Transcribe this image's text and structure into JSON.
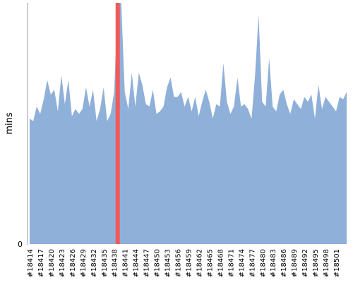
{
  "chart_data": {
    "type": "area",
    "ylabel": "mins",
    "xlabel": "",
    "ylim": [
      0,
      100
    ],
    "grid": false,
    "y_ticks": [
      {
        "value": 0,
        "label": "0"
      }
    ],
    "colors": {
      "area": "#8fb0d9",
      "highlight": "#f05a5a",
      "axis": "#999999",
      "text": "#000000"
    },
    "x_tick_labels": [
      "#18414",
      "#18417",
      "#18420",
      "#18423",
      "#18426",
      "#18429",
      "#18432",
      "#18435",
      "#18438",
      "#18441",
      "#18444",
      "#18447",
      "#18450",
      "#18453",
      "#18456",
      "#18459",
      "#18462",
      "#18465",
      "#18468",
      "#18471",
      "#18474",
      "#18477",
      "#18480",
      "#18483",
      "#18486",
      "#18489",
      "#18492",
      "#18495",
      "#18498",
      "#18501"
    ],
    "x_start": 18414,
    "highlight_build": "#18439",
    "series": [
      {
        "values": [
          52,
          51,
          57,
          54,
          60,
          68,
          62,
          64,
          55,
          70,
          58,
          68,
          53,
          56,
          54,
          56,
          65,
          57,
          64,
          51,
          56,
          65,
          51,
          54,
          63,
          100,
          100,
          63,
          56,
          71,
          57,
          71,
          66,
          58,
          57,
          64,
          54,
          55,
          57,
          65,
          69,
          61,
          61,
          63,
          57,
          61,
          55,
          61,
          53,
          59,
          64,
          59,
          52,
          58,
          57,
          75,
          59,
          54,
          57,
          69,
          57,
          58,
          56,
          52,
          70,
          95,
          59,
          57,
          77,
          57,
          55,
          62,
          64,
          58,
          54,
          60,
          58,
          56,
          61,
          59,
          62,
          52,
          66,
          56,
          61,
          59,
          57,
          55,
          61,
          60,
          63
        ]
      }
    ]
  }
}
